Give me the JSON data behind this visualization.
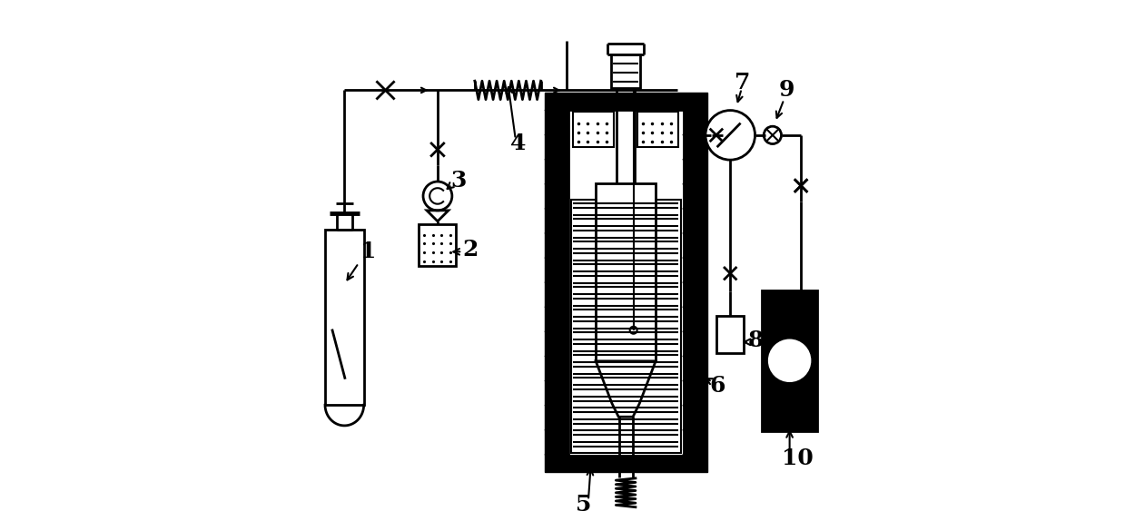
{
  "bg_color": "#ffffff",
  "line_color": "#000000",
  "fig_width": 12.39,
  "fig_height": 5.74
}
